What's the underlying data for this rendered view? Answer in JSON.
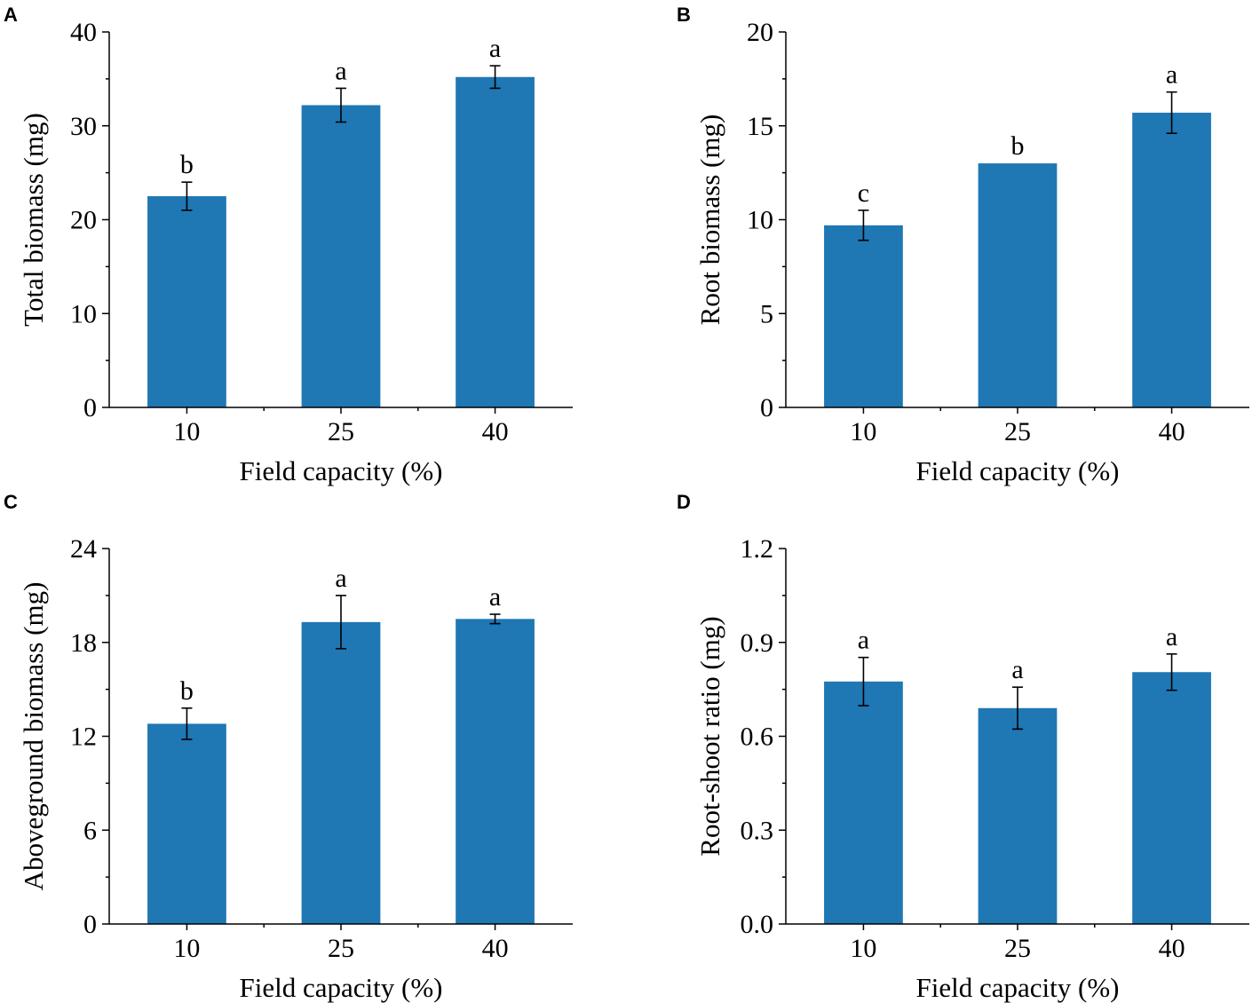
{
  "bar_color": "#1f77b4",
  "chart_data": [
    {
      "panel": "A",
      "type": "bar",
      "categories": [
        "10",
        "25",
        "40"
      ],
      "values": [
        22.5,
        32.2,
        35.2
      ],
      "errors": [
        1.5,
        1.8,
        1.2
      ],
      "significance": [
        "b",
        "a",
        "a"
      ],
      "xlabel": "Field capacity (%)",
      "ylabel": "Total biomass (mg)",
      "ylim": [
        0,
        40
      ],
      "yticks": [
        0,
        10,
        20,
        30,
        40
      ],
      "ytick_labels": [
        "0",
        "10",
        "20",
        "30",
        "40"
      ]
    },
    {
      "panel": "B",
      "type": "bar",
      "categories": [
        "10",
        "25",
        "40"
      ],
      "values": [
        9.7,
        13.0,
        15.7
      ],
      "errors": [
        0.8,
        0.0,
        1.1
      ],
      "significance": [
        "c",
        "b",
        "a"
      ],
      "xlabel": "Field capacity (%)",
      "ylabel": "Root biomass (mg)",
      "ylim": [
        0,
        20
      ],
      "yticks": [
        0,
        5,
        10,
        15,
        20
      ],
      "ytick_labels": [
        "0",
        "5",
        "10",
        "15",
        "20"
      ]
    },
    {
      "panel": "C",
      "type": "bar",
      "categories": [
        "10",
        "25",
        "40"
      ],
      "values": [
        12.8,
        19.3,
        19.5
      ],
      "errors": [
        1.0,
        1.7,
        0.3
      ],
      "significance": [
        "b",
        "a",
        "a"
      ],
      "xlabel": "Field capacity (%)",
      "ylabel": "Aboveground biomass (mg)",
      "ylim": [
        0,
        24
      ],
      "yticks": [
        0,
        6,
        12,
        18,
        24
      ],
      "ytick_labels": [
        "0",
        "6",
        "12",
        "18",
        "24"
      ]
    },
    {
      "panel": "D",
      "type": "bar",
      "categories": [
        "10",
        "25",
        "40"
      ],
      "values": [
        0.775,
        0.69,
        0.805
      ],
      "errors": [
        0.077,
        0.067,
        0.058
      ],
      "significance": [
        "a",
        "a",
        "a"
      ],
      "xlabel": "Field capacity (%)",
      "ylabel": "Root-shoot ratio (mg)",
      "ylim": [
        0,
        1.2
      ],
      "yticks": [
        0,
        0.3,
        0.6,
        0.9,
        1.2
      ],
      "ytick_labels": [
        "0.0",
        "0.3",
        "0.6",
        "0.9",
        "1.2"
      ]
    }
  ]
}
